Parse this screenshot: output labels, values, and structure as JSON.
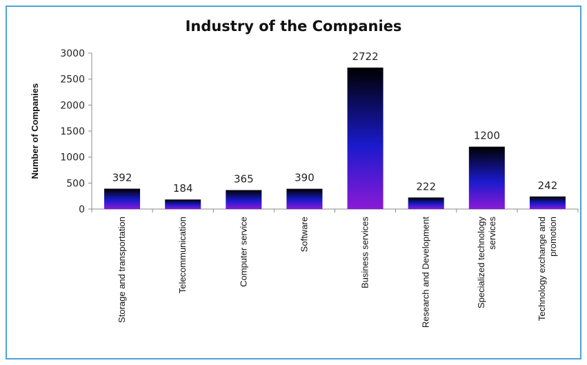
{
  "chart_data": {
    "type": "bar",
    "title": "Industry of the Companies",
    "xlabel": "",
    "ylabel": "Number of Companies",
    "ylim": [
      0,
      3000
    ],
    "yticks": [
      0,
      500,
      1000,
      1500,
      2000,
      2500,
      3000
    ],
    "categories": [
      [
        "Storage and transportation"
      ],
      [
        "Telecommunication"
      ],
      [
        "Computer service"
      ],
      [
        "Software"
      ],
      [
        "Business services"
      ],
      [
        "Research and Development"
      ],
      [
        "Specialized technology",
        "services"
      ],
      [
        "Technology exchange and",
        "promotion"
      ]
    ],
    "values": [
      392,
      184,
      365,
      390,
      2722,
      222,
      1200,
      242
    ],
    "data_labels": [
      "392",
      "184",
      "365",
      "390",
      "2722",
      "222",
      "1200",
      "242"
    ],
    "grid": false,
    "legend": "none",
    "bar_gradient": [
      "#000000",
      "#1a1acc",
      "#8a1ad6"
    ]
  }
}
